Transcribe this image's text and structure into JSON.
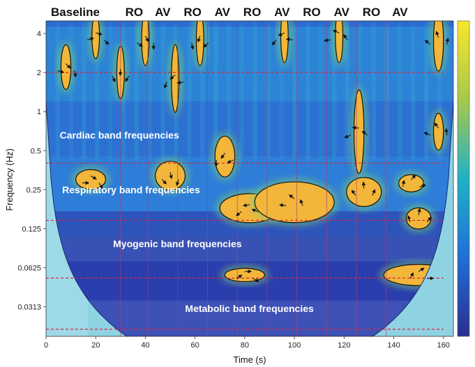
{
  "chart_data": {
    "type": "heatmap",
    "title": "",
    "xlabel": "Time (s)",
    "ylabel": "Frequency (Hz)",
    "xlim": [
      0,
      164
    ],
    "x_ticks": [
      0,
      20,
      40,
      60,
      80,
      100,
      120,
      140,
      160
    ],
    "y_ticks": [
      {
        "value": 4,
        "label": "4"
      },
      {
        "value": 2,
        "label": "2"
      },
      {
        "value": 1,
        "label": "1"
      },
      {
        "value": 0.5,
        "label": "0.5"
      },
      {
        "value": 0.25,
        "label": "0.25"
      },
      {
        "value": 0.125,
        "label": "0.125"
      },
      {
        "value": 0.0625,
        "label": "0.0625"
      },
      {
        "value": 0.03125,
        "label": "0.0313"
      }
    ],
    "ylim": [
      0.0185,
      5.0
    ],
    "yscale": "log2",
    "segments": [
      {
        "label": "Baseline",
        "start": 0,
        "end": 30
      },
      {
        "label": "RO",
        "start": 30,
        "end": 41
      },
      {
        "label": "AV",
        "start": 41,
        "end": 53
      },
      {
        "label": "RO",
        "start": 53,
        "end": 65
      },
      {
        "label": "AV",
        "start": 65,
        "end": 77
      },
      {
        "label": "RO",
        "start": 77,
        "end": 89
      },
      {
        "label": "AV",
        "start": 89,
        "end": 101
      },
      {
        "label": "RO",
        "start": 101,
        "end": 113
      },
      {
        "label": "AV",
        "start": 113,
        "end": 125
      },
      {
        "label": "RO",
        "start": 125,
        "end": 137
      },
      {
        "label": "AV",
        "start": 137,
        "end": 148
      }
    ],
    "band_boundaries_hz": [
      2,
      0.4,
      0.145,
      0.052,
      0.021
    ],
    "bands": [
      {
        "label": "Cardiac  band frequencies",
        "x": 5.5,
        "freq": 0.62
      },
      {
        "label": "Respiratory band frequencies",
        "x": 6.5,
        "freq": 0.235
      },
      {
        "label": "Myogenic band frequencies",
        "x": 27,
        "freq": 0.09
      },
      {
        "label": "Metabolic band frequencies",
        "x": 56,
        "freq": 0.0285
      }
    ],
    "hotspots": [
      {
        "x": 18,
        "freq": 0.3,
        "rx": 6,
        "ry": 0.18
      },
      {
        "x": 50,
        "freq": 0.32,
        "rx": 6,
        "ry": 0.3
      },
      {
        "x": 72,
        "freq": 0.45,
        "rx": 4,
        "ry": 0.45
      },
      {
        "x": 82,
        "freq": 0.18,
        "rx": 12,
        "ry": 0.3
      },
      {
        "x": 100,
        "freq": 0.2,
        "rx": 16,
        "ry": 0.45
      },
      {
        "x": 128,
        "freq": 0.24,
        "rx": 7,
        "ry": 0.3
      },
      {
        "x": 147,
        "freq": 0.28,
        "rx": 5,
        "ry": 0.15
      },
      {
        "x": 80,
        "freq": 0.055,
        "rx": 8,
        "ry": 0.1
      },
      {
        "x": 8,
        "freq": 2.2,
        "rx": 2,
        "ry": 0.5
      },
      {
        "x": 30,
        "freq": 2.0,
        "rx": 1.5,
        "ry": 0.6
      },
      {
        "x": 52,
        "freq": 1.8,
        "rx": 1.5,
        "ry": 0.8
      },
      {
        "x": 126,
        "freq": 0.7,
        "rx": 2,
        "ry": 1.0
      },
      {
        "x": 158,
        "freq": 0.7,
        "rx": 2,
        "ry": 0.4
      },
      {
        "x": 150,
        "freq": 0.15,
        "rx": 5,
        "ry": 0.2
      },
      {
        "x": 150,
        "freq": 0.055,
        "rx": 14,
        "ry": 0.2
      },
      {
        "x": 20,
        "freq": 3.8,
        "rx": 1.5,
        "ry": 0.5
      },
      {
        "x": 40,
        "freq": 3.6,
        "rx": 1.5,
        "ry": 0.6
      },
      {
        "x": 62,
        "freq": 3.6,
        "rx": 1.5,
        "ry": 0.6
      },
      {
        "x": 96,
        "freq": 3.8,
        "rx": 1.5,
        "ry": 0.6
      },
      {
        "x": 118,
        "freq": 3.8,
        "rx": 1.5,
        "ry": 0.6
      },
      {
        "x": 158,
        "freq": 3.5,
        "rx": 2,
        "ry": 0.7
      }
    ],
    "colorbar_range": [
      0,
      1
    ],
    "colors": {
      "low": "#2b3aa8",
      "mid": "#21b1c6",
      "high": "#f6e13e",
      "peak": "#f2b63a",
      "band_line": "#d7263d",
      "segment_line": "#b03a6e"
    }
  }
}
